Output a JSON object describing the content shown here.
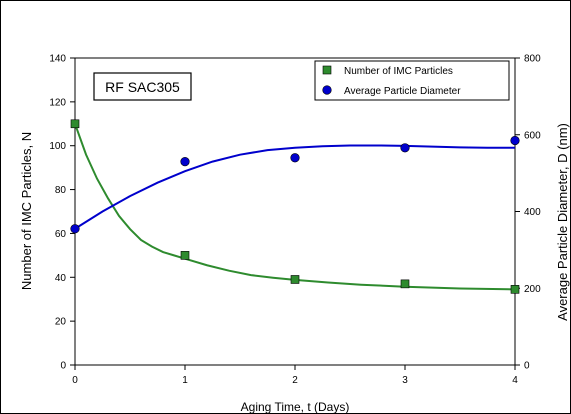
{
  "chart_data": {
    "type": "scatter",
    "title": "RF SAC305",
    "xlabel": "Aging Time, t (Days)",
    "ylabel_left": "Number of IMC Particles, N",
    "ylabel_right": "Average Particle Diameter, D (nm)",
    "xlim": [
      0,
      4
    ],
    "ylim_left": [
      0,
      140
    ],
    "ylim_right": [
      0,
      800
    ],
    "x_ticks": [
      "0",
      "1",
      "2",
      "3",
      "4"
    ],
    "y_ticks_left": [
      "0",
      "20",
      "40",
      "60",
      "80",
      "100",
      "120",
      "140"
    ],
    "y_ticks_right": [
      "0",
      "200",
      "400",
      "600",
      "800"
    ],
    "grid": false,
    "legend_position": "top-right",
    "series": [
      {
        "name": "Number of IMC Particles",
        "axis": "left",
        "marker": "square",
        "color": "#2e8b2e",
        "x": [
          0,
          1,
          2,
          3,
          4
        ],
        "y": [
          110,
          50,
          39,
          37,
          34.5
        ],
        "fit_x": [
          0,
          0.1,
          0.2,
          0.3,
          0.4,
          0.5,
          0.6,
          0.7,
          0.8,
          0.9,
          1.0,
          1.2,
          1.4,
          1.6,
          1.8,
          2.0,
          2.3,
          2.6,
          3.0,
          3.5,
          4.0
        ],
        "fit_y": [
          110,
          96,
          85,
          76,
          68,
          62,
          57,
          54,
          51.5,
          50,
          48.5,
          45.5,
          43,
          41,
          39.8,
          38.8,
          37.6,
          36.6,
          35.7,
          34.9,
          34.5
        ]
      },
      {
        "name": "Average Particle Diameter",
        "axis": "right",
        "marker": "circle",
        "color": "#0000cc",
        "x": [
          0,
          1,
          2,
          3,
          4
        ],
        "y": [
          355,
          530,
          540,
          566,
          585
        ],
        "fit_x": [
          0,
          0.25,
          0.5,
          0.75,
          1.0,
          1.25,
          1.5,
          1.75,
          2.0,
          2.25,
          2.5,
          2.75,
          3.0,
          3.25,
          3.5,
          3.75,
          4.0
        ],
        "fit_y": [
          355,
          400,
          440,
          475,
          505,
          530,
          548,
          560,
          566,
          570,
          572,
          572,
          571,
          569,
          567,
          566,
          566
        ]
      }
    ]
  }
}
